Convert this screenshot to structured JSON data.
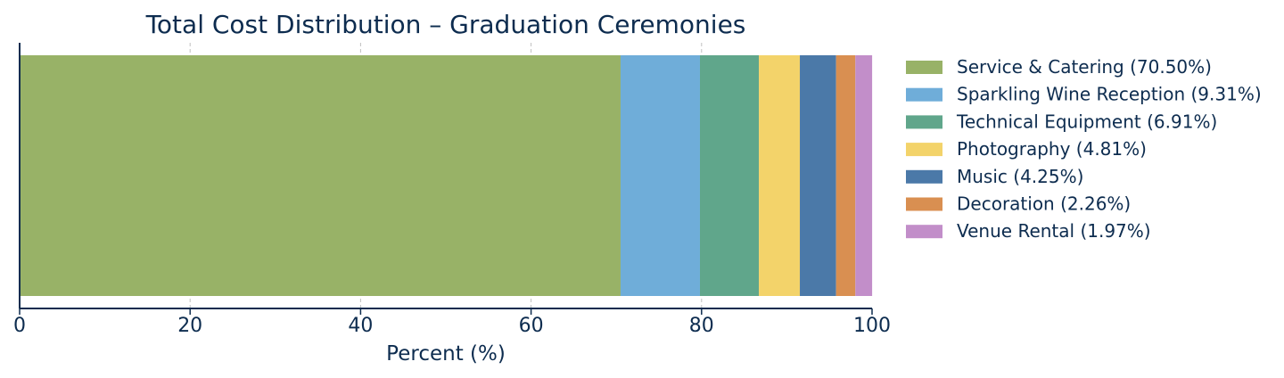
{
  "chart_data": {
    "type": "bar",
    "orientation": "horizontal-stacked",
    "title": "Total Cost Distribution – Graduation Ceremonies",
    "xlabel": "Percent (%)",
    "ylabel": "",
    "xlim": [
      0,
      100
    ],
    "xticks": [
      "0",
      "20",
      "40",
      "60",
      "80",
      "100"
    ],
    "grid": "vertical dashed",
    "legend_position": "right",
    "series": [
      {
        "name": "Service & Catering (70.50%)",
        "value": 70.5,
        "color": "#98b267"
      },
      {
        "name": "Sparkling Wine Reception (9.31%)",
        "value": 9.31,
        "color": "#6fadd9"
      },
      {
        "name": "Technical Equipment (6.91%)",
        "value": 6.91,
        "color": "#60a68b"
      },
      {
        "name": "Photography (4.81%)",
        "value": 4.81,
        "color": "#f3d36a"
      },
      {
        "name": "Music (4.25%)",
        "value": 4.25,
        "color": "#4b79a8"
      },
      {
        "name": "Decoration (2.26%)",
        "value": 2.26,
        "color": "#d98f51"
      },
      {
        "name": "Venue Rental (1.97%)",
        "value": 1.97,
        "color": "#c28ec9"
      }
    ]
  },
  "colors": {
    "text": "#0d2c4f",
    "axis": "#0d2c4f",
    "grid": "#c0c0c0"
  }
}
